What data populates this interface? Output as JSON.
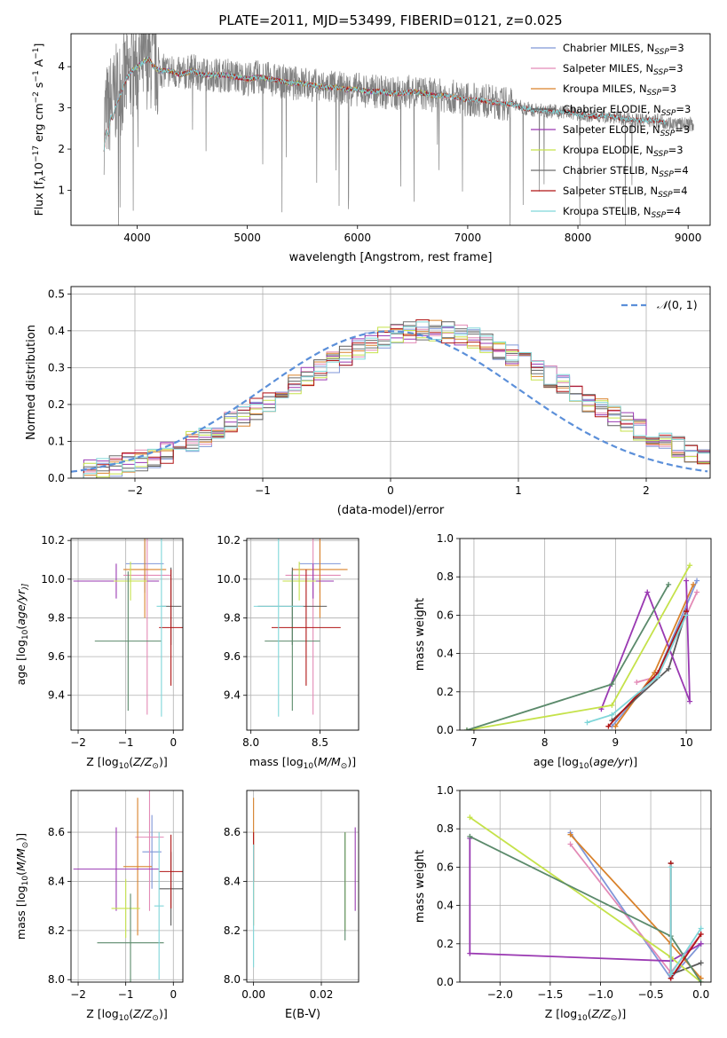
{
  "title": "PLATE=2011, MJD=53499, FIBERID=0121, z=0.025",
  "series_colors": [
    "#7f96d8",
    "#e38ab6",
    "#d9822b",
    "#5b5b5b",
    "#9a39b2",
    "#c5e24a",
    "#6e6e6e",
    "#b01515",
    "#7fd6d9"
  ],
  "chart_data": [
    {
      "id": "spectrum",
      "type": "line",
      "title": "PLATE=2011, MJD=53499, FIBERID=0121, z=0.025",
      "xlabel": "wavelength [Angstrom, rest frame]",
      "ylabel_parts": [
        "Flux [f",
        "λ",
        "10",
        "−17",
        " erg cm",
        "−2",
        " s",
        "−1",
        " A",
        "−1",
        "]"
      ],
      "xlim": [
        3400,
        9200
      ],
      "ylim": [
        0.15,
        4.8
      ],
      "xticks": [
        4000,
        5000,
        6000,
        7000,
        8000,
        9000
      ],
      "yticks": [
        1,
        2,
        3,
        4
      ],
      "grid": false,
      "legend_position": "top-right",
      "data_color": "#808080",
      "data_x": [
        3700,
        3720,
        3740,
        3760,
        3780,
        3800,
        3850,
        3900,
        3950,
        4000,
        4050,
        4100,
        4150,
        4200,
        4300,
        4400,
        4500,
        4600,
        4700,
        4800,
        4900,
        5000,
        5100,
        5200,
        5300,
        5400,
        5500,
        5600,
        5700,
        5800,
        5900,
        6000,
        6100,
        6200,
        6300,
        6400,
        6500,
        6600,
        6700,
        6800,
        6900,
        7000,
        7100,
        7200,
        7300,
        7400,
        7450,
        7500,
        7600,
        7700,
        7800,
        7900,
        8000,
        8100,
        8200,
        8300,
        8400,
        8500,
        8600,
        8700,
        8800,
        8900,
        9000,
        9050
      ],
      "data_y": [
        2.6,
        3.0,
        2.8,
        3.2,
        3.1,
        3.3,
        3.5,
        3.7,
        3.9,
        4.0,
        4.1,
        4.2,
        4.0,
        3.9,
        3.9,
        3.8,
        3.9,
        3.8,
        3.8,
        3.8,
        3.75,
        3.7,
        3.75,
        3.7,
        3.65,
        3.6,
        3.6,
        3.55,
        3.5,
        3.5,
        3.45,
        3.45,
        3.4,
        3.4,
        3.35,
        3.35,
        3.4,
        3.35,
        3.3,
        3.3,
        3.25,
        3.2,
        3.2,
        3.15,
        3.1,
        3.1,
        3.05,
        3.0,
        2.95,
        2.95,
        2.9,
        2.9,
        2.85,
        2.8,
        2.8,
        2.8,
        2.75,
        2.7,
        2.7,
        2.7,
        2.65,
        2.6,
        2.6,
        2.6
      ],
      "data_noise": 0.35,
      "series": [
        {
          "name_parts": [
            "Chabrier MILES, N",
            "SSP",
            "=3"
          ],
          "color": "#7f96d8",
          "start": 3700,
          "end": 7420
        },
        {
          "name_parts": [
            "Salpeter MILES, N",
            "SSP",
            "=3"
          ],
          "color": "#e38ab6",
          "start": 3700,
          "end": 7420
        },
        {
          "name_parts": [
            "Kroupa MILES, N",
            "SSP",
            "=3"
          ],
          "color": "#d9822b",
          "start": 3700,
          "end": 7420
        },
        {
          "name_parts": [
            "Chabrier ELODIE, N",
            "SSP",
            "=3"
          ],
          "color": "#5b5b5b",
          "start": 3900,
          "end": 6800
        },
        {
          "name_parts": [
            "Salpeter ELODIE, N",
            "SSP",
            "=3"
          ],
          "color": "#9a39b2",
          "start": 3900,
          "end": 6800
        },
        {
          "name_parts": [
            "Kroupa ELODIE, N",
            "SSP",
            "=3"
          ],
          "color": "#c5e24a",
          "start": 3900,
          "end": 6800
        },
        {
          "name_parts": [
            "Chabrier STELIB, N",
            "SSP",
            "=4"
          ],
          "color": "#6e6e6e",
          "start": 3700,
          "end": 8800
        },
        {
          "name_parts": [
            "Salpeter STELIB, N",
            "SSP",
            "=4"
          ],
          "color": "#b01515",
          "start": 3700,
          "end": 8800
        },
        {
          "name_parts": [
            "Kroupa STELIB, N",
            "SSP",
            "=4"
          ],
          "color": "#7fd6d9",
          "start": 3700,
          "end": 8800
        }
      ]
    },
    {
      "id": "residuals",
      "type": "step",
      "xlabel": "(data-model)/error",
      "ylabel": "Normed distribution",
      "xlim": [
        -2.5,
        2.5
      ],
      "ylim": [
        0,
        0.52
      ],
      "xticks": [
        -2,
        -1,
        0,
        1,
        2
      ],
      "yticks": [
        0.0,
        0.1,
        0.2,
        0.3,
        0.4,
        0.5
      ],
      "grid": true,
      "legend_position": "top-right",
      "legend_parts": [
        "𝒩",
        "(0, 1)"
      ],
      "reference_curve": "normal(0,1)",
      "reference_color": "#5b8fd9",
      "bin_width": 0.1,
      "bin_start": -2.5,
      "base_values": [
        0.017,
        0.021,
        0.026,
        0.032,
        0.04,
        0.048,
        0.058,
        0.07,
        0.083,
        0.097,
        0.113,
        0.13,
        0.149,
        0.168,
        0.189,
        0.21,
        0.231,
        0.253,
        0.275,
        0.296,
        0.316,
        0.335,
        0.352,
        0.367,
        0.38,
        0.39,
        0.396,
        0.4,
        0.4,
        0.396,
        0.39,
        0.38,
        0.367,
        0.352,
        0.335,
        0.316,
        0.296,
        0.275,
        0.253,
        0.231,
        0.21,
        0.189,
        0.168,
        0.149,
        0.13,
        0.113,
        0.097,
        0.083,
        0.07,
        0.058
      ],
      "series_noise": 0.03
    },
    {
      "id": "age-vs-Z",
      "type": "errorbar",
      "xlabel_parts": [
        "Z [log",
        "10",
        "(",
        "Z/Z",
        "⊙",
        ")]"
      ],
      "ylabel_parts": [
        "age  [log",
        "10",
        "(",
        "age/yr",
        ")]"
      ],
      "xlim": [
        -2.15,
        0.2
      ],
      "ylim": [
        9.22,
        10.21
      ],
      "xticks": [
        -2,
        -1,
        0
      ],
      "yticks": [
        9.4,
        9.6,
        9.8,
        10.0,
        10.2
      ],
      "grid": true,
      "points": [
        {
          "color": "#7f96d8",
          "x": -0.6,
          "xerr": 0.4,
          "y": 10.08,
          "yerr": 0.15
        },
        {
          "color": "#e38ab6",
          "x": -0.55,
          "xerr": 0.5,
          "y": 10.02,
          "yerr": 0.72
        },
        {
          "color": "#d9822b",
          "x": -0.6,
          "xerr": 0.45,
          "y": 10.05,
          "yerr": 0.25
        },
        {
          "color": "#5b5b5b",
          "x": -0.05,
          "xerr": 0.22,
          "y": 9.86,
          "yerr": 0.2
        },
        {
          "color": "#9a39b2",
          "x": -1.2,
          "xerr": 0.9,
          "y": 9.99,
          "yerr": 0.09
        },
        {
          "color": "#c5e24a",
          "x": -0.9,
          "xerr": 0.35,
          "y": 9.99,
          "yerr": 0.1
        },
        {
          "color": "#5b8a6b",
          "x": -0.95,
          "xerr": 0.7,
          "y": 9.68,
          "yerr": 0.36
        },
        {
          "color": "#b01515",
          "x": -0.05,
          "xerr": 0.25,
          "y": 9.75,
          "yerr": 0.3
        },
        {
          "color": "#7fd6d9",
          "x": -0.25,
          "xerr": 0.1,
          "y": 9.86,
          "yerr": 0.57
        }
      ]
    },
    {
      "id": "age-vs-mass",
      "type": "errorbar",
      "xlabel_parts": [
        "mass [log",
        "10",
        "(",
        "M/M",
        "⊙",
        ")]"
      ],
      "xlim": [
        7.97,
        8.78
      ],
      "ylim": [
        9.22,
        10.21
      ],
      "xticks": [
        8.0,
        8.5
      ],
      "yticks": [
        9.4,
        9.6,
        9.8,
        10.0,
        10.2
      ],
      "grid": true,
      "points": [
        {
          "color": "#7f96d8",
          "x": 8.5,
          "xerr": 0.15,
          "y": 10.08,
          "yerr": 0.15
        },
        {
          "color": "#e38ab6",
          "x": 8.45,
          "xerr": 0.2,
          "y": 10.02,
          "yerr": 0.72
        },
        {
          "color": "#d9822b",
          "x": 8.5,
          "xerr": 0.2,
          "y": 10.05,
          "yerr": 0.25
        },
        {
          "color": "#5b5b5b",
          "x": 8.3,
          "xerr": 0.25,
          "y": 9.86,
          "yerr": 0.2
        },
        {
          "color": "#9a39b2",
          "x": 8.45,
          "xerr": 0.15,
          "y": 9.99,
          "yerr": 0.09
        },
        {
          "color": "#c5e24a",
          "x": 8.35,
          "xerr": 0.12,
          "y": 9.99,
          "yerr": 0.1
        },
        {
          "color": "#5b8a6b",
          "x": 8.3,
          "xerr": 0.2,
          "y": 9.68,
          "yerr": 0.36
        },
        {
          "color": "#b01515",
          "x": 8.4,
          "xerr": 0.25,
          "y": 9.75,
          "yerr": 0.3
        },
        {
          "color": "#7fd6d9",
          "x": 8.2,
          "xerr": 0.18,
          "y": 9.86,
          "yerr": 0.57
        }
      ]
    },
    {
      "id": "weight-vs-age",
      "type": "line",
      "xlabel_parts": [
        "age  [log",
        "10",
        "(",
        "age/yr",
        ")]"
      ],
      "ylabel": "mass weight",
      "xlim": [
        6.8,
        10.35
      ],
      "ylim": [
        0,
        1.0
      ],
      "xticks": [
        7,
        8,
        9,
        10
      ],
      "yticks": [
        0.0,
        0.2,
        0.4,
        0.6,
        0.8,
        1.0
      ],
      "grid": true,
      "series": [
        {
          "color": "#7f96d8",
          "x": [
            8.95,
            9.6,
            10.15
          ],
          "y": [
            0.02,
            0.3,
            0.78
          ]
        },
        {
          "color": "#e38ab6",
          "x": [
            9.3,
            9.6,
            10.15
          ],
          "y": [
            0.25,
            0.28,
            0.72
          ]
        },
        {
          "color": "#d9822b",
          "x": [
            9.0,
            9.55,
            10.1
          ],
          "y": [
            0.02,
            0.3,
            0.76
          ]
        },
        {
          "color": "#5b5b5b",
          "x": [
            8.95,
            9.75,
            10.0
          ],
          "y": [
            0.05,
            0.32,
            0.62
          ]
        },
        {
          "color": "#9a39b2",
          "x": [
            8.8,
            9.45,
            10.05,
            10.0
          ],
          "y": [
            0.11,
            0.72,
            0.15,
            0.78
          ]
        },
        {
          "color": "#c5e24a",
          "x": [
            6.9,
            8.95,
            10.05
          ],
          "y": [
            0.0,
            0.13,
            0.86
          ]
        },
        {
          "color": "#5b8a6b",
          "x": [
            6.9,
            8.95,
            9.75
          ],
          "y": [
            0.0,
            0.24,
            0.76
          ]
        },
        {
          "color": "#b01515",
          "x": [
            8.9,
            9.6,
            10.0
          ],
          "y": [
            0.02,
            0.3,
            0.62
          ]
        },
        {
          "color": "#7fd6d9",
          "x": [
            8.6,
            8.95,
            9.6,
            10.0
          ],
          "y": [
            0.04,
            0.08,
            0.28,
            0.6
          ]
        }
      ]
    },
    {
      "id": "mass-vs-Z",
      "type": "errorbar",
      "xlabel_parts": [
        "Z [log",
        "10",
        "(",
        "Z/Z",
        "⊙",
        ")]"
      ],
      "ylabel_parts": [
        "mass [log",
        "10",
        "(",
        "M/M",
        "⊙",
        ")]"
      ],
      "xlim": [
        -2.15,
        0.2
      ],
      "ylim": [
        7.99,
        8.77
      ],
      "xticks": [
        -2,
        -1,
        0
      ],
      "yticks": [
        8.0,
        8.2,
        8.4,
        8.6
      ],
      "grid": true,
      "points": [
        {
          "color": "#7f96d8",
          "x": -0.45,
          "xerr": 0.2,
          "y": 8.52,
          "yerr": 0.15
        },
        {
          "color": "#e38ab6",
          "x": -0.5,
          "xerr": 0.3,
          "y": 8.58,
          "yerr": 0.3
        },
        {
          "color": "#d9822b",
          "x": -0.75,
          "xerr": 0.3,
          "y": 8.46,
          "yerr": 0.28
        },
        {
          "color": "#5b5b5b",
          "x": -0.05,
          "xerr": 0.25,
          "y": 8.37,
          "yerr": 0.15
        },
        {
          "color": "#9a39b2",
          "x": -1.2,
          "xerr": 0.9,
          "y": 8.45,
          "yerr": 0.17
        },
        {
          "color": "#c5e24a",
          "x": -1.0,
          "xerr": 0.3,
          "y": 8.29,
          "yerr": 0.12
        },
        {
          "color": "#5b8a6b",
          "x": -0.9,
          "xerr": 0.7,
          "y": 8.15,
          "yerr": 0.2
        },
        {
          "color": "#b01515",
          "x": -0.05,
          "xerr": 0.25,
          "y": 8.44,
          "yerr": 0.15
        },
        {
          "color": "#7fd6d9",
          "x": -0.3,
          "xerr": 0.1,
          "y": 8.3,
          "yerr": 0.3
        }
      ]
    },
    {
      "id": "mass-vs-ebv",
      "type": "errorbar",
      "xlabel": "E(B-V)",
      "xlim": [
        -0.002,
        0.031
      ],
      "ylim": [
        7.99,
        8.77
      ],
      "xticks": [
        0.0,
        0.02
      ],
      "yticks": [
        8.0,
        8.2,
        8.4,
        8.6
      ],
      "grid": true,
      "points": [
        {
          "color": "#d9822b",
          "x": 0.0,
          "xerr": 0,
          "y": 8.48,
          "yerr": 0.26
        },
        {
          "color": "#b01515",
          "x": 0.0,
          "xerr": 0,
          "y": 8.5,
          "yerr": 0.1
        },
        {
          "color": "#7fd6d9",
          "x": 0.0,
          "xerr": 0,
          "y": 8.3,
          "yerr": 0.25
        },
        {
          "color": "#c5e24a",
          "x": 0.027,
          "xerr": 0,
          "y": 8.4,
          "yerr": 0.2
        },
        {
          "color": "#5b8a6b",
          "x": 0.027,
          "xerr": 0,
          "y": 8.38,
          "yerr": 0.22
        },
        {
          "color": "#9a39b2",
          "x": 0.03,
          "xerr": 0,
          "y": 8.45,
          "yerr": 0.17
        }
      ]
    },
    {
      "id": "weight-vs-Z",
      "type": "line",
      "xlabel_parts": [
        "Z [log",
        "10",
        "(",
        "Z/Z",
        "⊙",
        ")]"
      ],
      "ylabel": "mass weight",
      "xlim": [
        -2.4,
        0.1
      ],
      "ylim": [
        0,
        1.0
      ],
      "xticks": [
        -2.0,
        -1.5,
        -1.0,
        -0.5,
        0.0
      ],
      "yticks": [
        0.0,
        0.2,
        0.4,
        0.6,
        0.8,
        1.0
      ],
      "xtick_labels": [
        "−2.0",
        "−1.5",
        "−1.0",
        "−0.5",
        "0.0"
      ],
      "grid": true,
      "series": [
        {
          "color": "#7f96d8",
          "x": [
            -1.3,
            -0.3,
            0.0
          ],
          "y": [
            0.78,
            0.02,
            0.2
          ]
        },
        {
          "color": "#e38ab6",
          "x": [
            -1.3,
            -0.3,
            0.0
          ],
          "y": [
            0.72,
            0.05,
            0.25
          ]
        },
        {
          "color": "#d9822b",
          "x": [
            -1.3,
            -0.3,
            0.0
          ],
          "y": [
            0.77,
            0.2,
            0.02
          ]
        },
        {
          "color": "#5b5b5b",
          "x": [
            -0.3,
            -0.3,
            0.0
          ],
          "y": [
            0.62,
            0.04,
            0.1
          ]
        },
        {
          "color": "#9a39b2",
          "x": [
            -2.3,
            -2.3,
            -0.3,
            0.0
          ],
          "y": [
            0.75,
            0.15,
            0.11,
            0.2
          ]
        },
        {
          "color": "#c5e24a",
          "x": [
            -2.3,
            -0.3,
            0.0
          ],
          "y": [
            0.86,
            0.13,
            0.0
          ]
        },
        {
          "color": "#5b8a6b",
          "x": [
            -2.3,
            -0.3,
            0.0
          ],
          "y": [
            0.76,
            0.24,
            0.0
          ]
        },
        {
          "color": "#b01515",
          "x": [
            -0.3,
            -0.3,
            0.0
          ],
          "y": [
            0.62,
            0.02,
            0.25
          ]
        },
        {
          "color": "#7fd6d9",
          "x": [
            -0.3,
            -0.3,
            0.0
          ],
          "y": [
            0.6,
            0.04,
            0.28
          ]
        }
      ]
    }
  ]
}
